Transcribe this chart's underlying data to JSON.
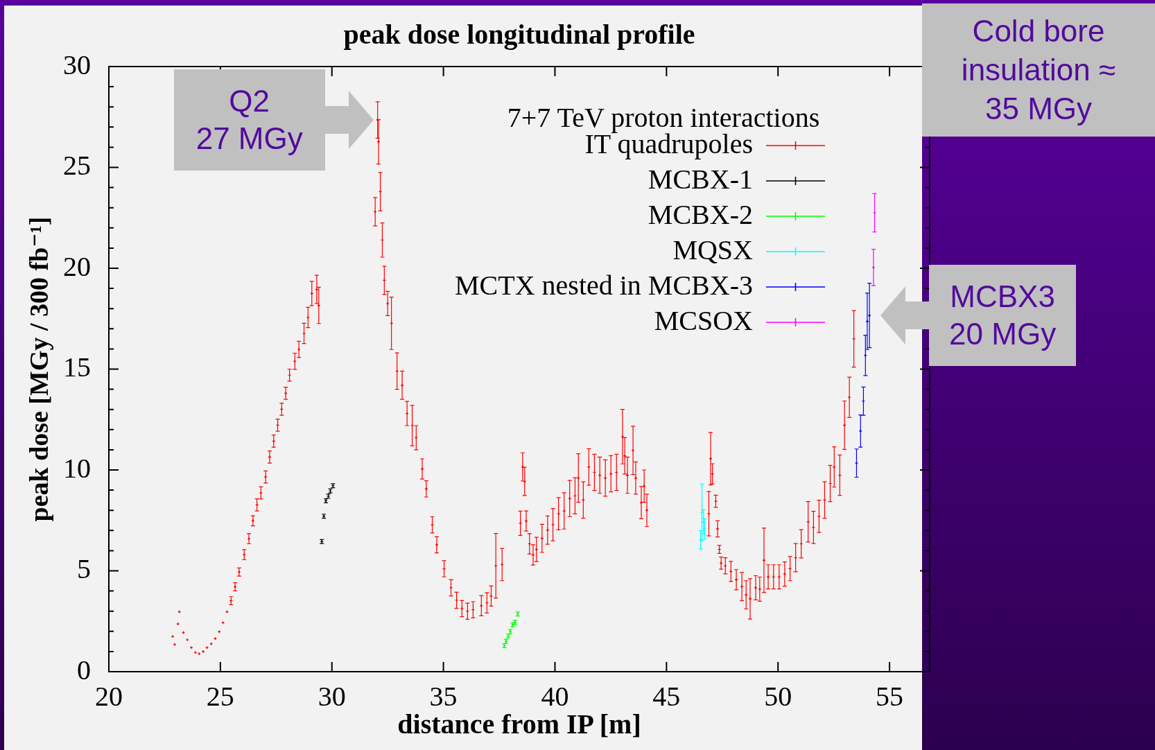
{
  "chart_data": {
    "type": "scatter",
    "title": "peak dose longitudinal profile",
    "xlabel": "distance from IP [m]",
    "ylabel": "peak dose [MGy / 300 fb⁻¹]",
    "legend_title": "7+7 TeV proton interactions",
    "legend": "top right",
    "marker": "cross",
    "xlim": [
      20,
      56.8
    ],
    "xticks": [
      20,
      25,
      30,
      35,
      40,
      45,
      50,
      55
    ],
    "ylim": [
      0,
      30
    ],
    "yticks": [
      0,
      {
        "value": 1,
        "label": null
      },
      {
        "value": 2,
        "label": null
      },
      {
        "value": 3,
        "label": null
      },
      {
        "value": 4,
        "label": null
      },
      5,
      {
        "value": 6,
        "label": null
      },
      {
        "value": 7,
        "label": null
      },
      {
        "value": 8,
        "label": null
      },
      {
        "value": 9,
        "label": null
      },
      10,
      {
        "value": 11,
        "label": null
      },
      {
        "value": 12,
        "label": null
      },
      {
        "value": 13,
        "label": null
      },
      {
        "value": 14,
        "label": null
      },
      15,
      {
        "value": 16,
        "label": null
      },
      {
        "value": 17,
        "label": null
      },
      {
        "value": 18,
        "label": null
      },
      {
        "value": 19,
        "label": null
      },
      20,
      {
        "value": 21,
        "label": null
      },
      {
        "value": 22,
        "label": null
      },
      {
        "value": 23,
        "label": null
      },
      {
        "value": 24,
        "label": null
      },
      25,
      {
        "value": 26,
        "label": null
      },
      {
        "value": 27,
        "label": null
      },
      {
        "value": 28,
        "label": null
      },
      {
        "value": 29,
        "label": null
      },
      30
    ],
    "annotations": [
      {
        "text": "Q2\n27 MGy",
        "x": 32.05,
        "y": 27.35
      },
      {
        "text": "MCBX3\n20 MGy",
        "x": 54.1,
        "y": 17.66
      },
      "Cold bore insulation ≈ 35 MGy"
    ],
    "series": [
      {
        "name": "IT quadrupoles",
        "color": "#ff0000",
        "x": [
          22.86,
          22.95,
          23.1,
          23.16,
          23.34,
          23.52,
          23.7,
          23.88,
          24.05,
          24.23,
          24.4,
          24.59,
          24.77,
          24.95,
          25.12,
          25.3,
          25.48,
          25.66,
          25.84,
          26.07,
          26.28,
          26.46,
          26.64,
          26.82,
          27.03,
          27.21,
          27.39,
          27.57,
          27.75,
          27.93,
          28.1,
          28.34,
          28.52,
          28.75,
          28.93,
          29.1,
          29.32,
          29.41,
          31.94,
          32.05,
          32.09,
          32.17,
          32.26,
          32.35,
          32.5,
          32.67,
          32.92,
          33.15,
          33.37,
          33.6,
          33.78,
          34.05,
          34.23,
          34.5,
          34.7,
          35.03,
          35.34,
          35.59,
          35.83,
          36.08,
          36.33,
          36.7,
          36.95,
          37.14,
          37.35,
          37.63,
          38.45,
          38.55,
          38.64,
          38.71,
          38.86,
          39.02,
          39.17,
          39.42,
          39.67,
          39.91,
          40.16,
          40.41,
          40.66,
          40.9,
          41.05,
          41.27,
          41.52,
          41.77,
          42.01,
          42.26,
          42.51,
          42.76,
          43.03,
          43.13,
          43.25,
          43.5,
          43.62,
          43.87,
          44.0,
          44.12,
          46.9,
          46.98,
          47.06,
          47.21,
          47.29,
          47.37,
          47.45,
          47.64,
          47.89,
          48.13,
          48.38,
          48.57,
          48.75,
          49.0,
          49.18,
          49.37,
          49.56,
          49.8,
          50.05,
          50.3,
          50.54,
          50.79,
          51.04,
          51.35,
          51.59,
          51.84,
          52.09,
          52.34,
          52.52,
          52.77,
          52.98,
          53.2,
          53.4
        ],
        "values": [
          1.74,
          1.35,
          2.37,
          2.97,
          1.94,
          1.58,
          1.19,
          0.95,
          0.89,
          1.0,
          1.19,
          1.38,
          1.64,
          1.98,
          2.43,
          2.97,
          3.52,
          4.21,
          4.94,
          5.8,
          6.59,
          7.48,
          8.27,
          8.86,
          9.65,
          10.64,
          11.43,
          12.22,
          13.01,
          13.8,
          14.7,
          15.39,
          15.98,
          16.77,
          17.56,
          18.75,
          18.95,
          18.16,
          22.8,
          27.35,
          26.27,
          23.8,
          21.4,
          19.4,
          18.25,
          17.27,
          14.9,
          14.2,
          12.8,
          12.2,
          11.6,
          10.05,
          9.06,
          7.28,
          6.29,
          5.1,
          4.16,
          3.54,
          3.13,
          3.0,
          3.07,
          3.27,
          3.41,
          3.75,
          5.25,
          5.31,
          7.36,
          10.15,
          9.43,
          7.47,
          6.34,
          5.79,
          6.06,
          6.61,
          7.02,
          7.29,
          7.83,
          7.97,
          8.58,
          8.72,
          9.6,
          8.51,
          10.15,
          9.88,
          9.74,
          9.6,
          9.81,
          9.88,
          11.65,
          10.7,
          9.74,
          10.97,
          9.6,
          8.38,
          9.2,
          8.0,
          7.83,
          10.56,
          9.81,
          8.45,
          7.08,
          6.06,
          5.38,
          5.25,
          4.97,
          4.56,
          4.22,
          3.81,
          3.61,
          4.16,
          4.09,
          5.52,
          4.7,
          4.7,
          4.7,
          4.84,
          5.11,
          5.65,
          6.34,
          7.43,
          7.15,
          7.7,
          8.51,
          9.33,
          10.15,
          9.74,
          12.22,
          13.6,
          16.5
        ],
        "errors": [
          null,
          null,
          null,
          null,
          null,
          null,
          null,
          null,
          null,
          null,
          null,
          null,
          null,
          null,
          null,
          null,
          0.2,
          0.2,
          0.2,
          0.25,
          0.25,
          0.25,
          0.3,
          0.3,
          0.3,
          0.3,
          0.3,
          0.3,
          0.3,
          0.3,
          0.3,
          0.4,
          0.4,
          0.5,
          0.5,
          0.6,
          0.7,
          0.9,
          0.7,
          0.9,
          1.1,
          0.95,
          0.85,
          0.7,
          0.6,
          1.3,
          0.9,
          0.7,
          0.6,
          1.0,
          0.6,
          0.5,
          0.4,
          0.4,
          0.4,
          0.4,
          0.4,
          0.4,
          0.4,
          0.4,
          0.4,
          0.5,
          0.5,
          0.5,
          1.6,
          0.8,
          0.6,
          0.7,
          0.7,
          0.5,
          0.5,
          0.5,
          0.6,
          0.7,
          0.7,
          0.8,
          0.8,
          0.9,
          0.9,
          0.9,
          1.2,
          0.9,
          0.9,
          0.9,
          0.9,
          0.9,
          0.9,
          0.9,
          1.35,
          0.9,
          0.9,
          1.2,
          0.8,
          0.8,
          0.8,
          0.8,
          1.1,
          1.3,
          0.5,
          0.3,
          0.4,
          0.2,
          0.3,
          0.4,
          0.5,
          0.5,
          0.7,
          0.7,
          1.0,
          0.6,
          0.6,
          1.6,
          0.6,
          0.6,
          0.6,
          0.6,
          0.6,
          0.7,
          0.7,
          1.0,
          0.8,
          0.8,
          0.9,
          0.9,
          1.0,
          1.0,
          1.2,
          1.0,
          1.4
        ]
      },
      {
        "name": "MCBX-1",
        "color": "#000000",
        "x": [
          29.55,
          29.64,
          29.73,
          29.84,
          29.93,
          30.05
        ],
        "values": [
          6.45,
          7.71,
          8.47,
          8.7,
          8.96,
          9.22
        ],
        "errors": [
          0.1,
          0.1,
          0.1,
          0.1,
          0.1,
          0.1
        ]
      },
      {
        "name": "MCBX-2",
        "color": "#00ff00",
        "x": [
          37.73,
          37.81,
          37.91,
          38.0,
          38.1,
          38.21,
          38.33
        ],
        "values": [
          1.29,
          1.5,
          1.77,
          1.98,
          2.32,
          2.45,
          2.86
        ],
        "errors": [
          0.1,
          0.1,
          0.1,
          0.1,
          0.1,
          0.1,
          0.1
        ]
      },
      {
        "name": "MQSX",
        "color": "#00ffff",
        "x": [
          46.53,
          46.59,
          46.66,
          46.71
        ],
        "values": [
          6.54,
          7.9,
          7.43,
          7.08
        ],
        "errors": [
          0.45,
          1.4,
          0.6,
          0.5
        ]
      },
      {
        "name": "MCTX nested in MCBX-3",
        "color": "#0000ff",
        "x": [
          53.52,
          53.7,
          53.83,
          53.92,
          54.0,
          54.1
        ],
        "values": [
          10.34,
          11.93,
          13.41,
          15.68,
          17.37,
          17.66
        ],
        "errors": [
          0.7,
          0.8,
          0.7,
          1.0,
          1.4,
          1.6
        ]
      },
      {
        "name": "MCSOX",
        "color": "#ff00ff",
        "x": [
          54.28,
          54.33
        ],
        "values": [
          20.04,
          22.75
        ],
        "errors": [
          0.9,
          0.95
        ]
      }
    ]
  }
}
